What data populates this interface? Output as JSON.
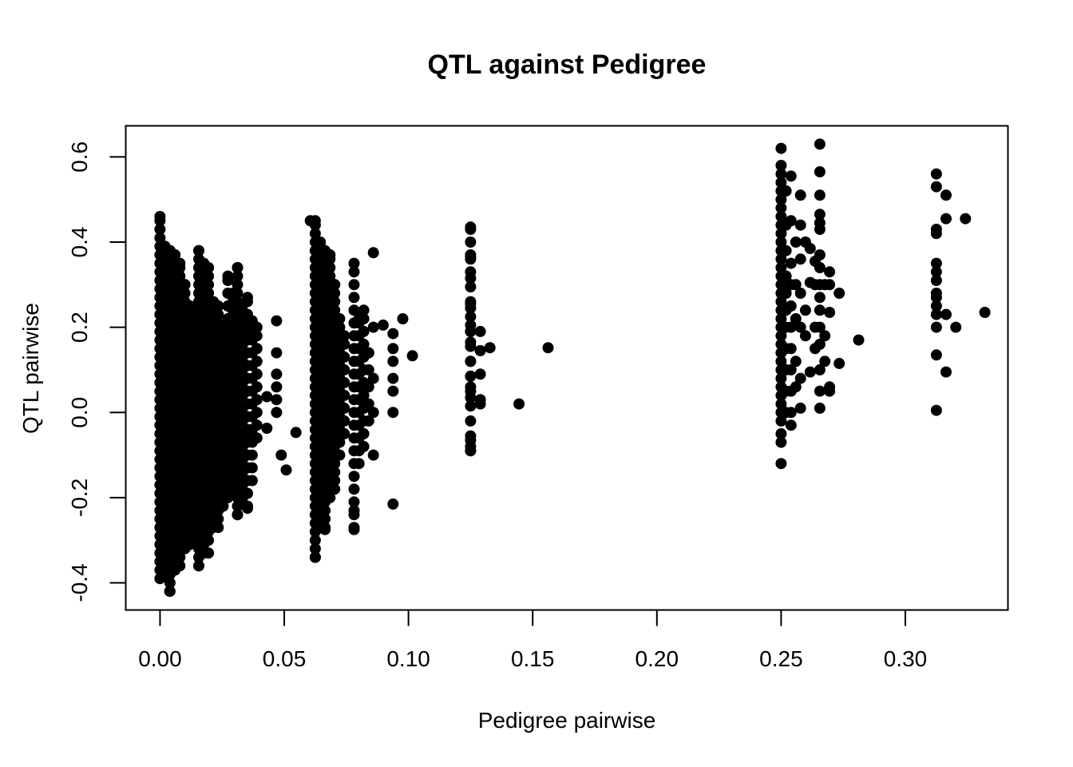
{
  "chart_data": {
    "type": "scatter",
    "title": "QTL against Pedigree",
    "xlabel": "Pedigree pairwise",
    "ylabel": "QTL pairwise",
    "xlim": [
      -0.0138,
      0.3413
    ],
    "ylim": [
      -0.4638,
      0.6729
    ],
    "xticks": [
      {
        "value": 0.0,
        "label": "0.00"
      },
      {
        "value": 0.05,
        "label": "0.05"
      },
      {
        "value": 0.1,
        "label": "0.10"
      },
      {
        "value": 0.15,
        "label": "0.15"
      },
      {
        "value": 0.2,
        "label": "0.20"
      },
      {
        "value": 0.25,
        "label": "0.25"
      },
      {
        "value": 0.3,
        "label": "0.30"
      }
    ],
    "yticks": [
      {
        "value": -0.4,
        "label": "-0.4"
      },
      {
        "value": -0.2,
        "label": "-0.2"
      },
      {
        "value": 0.0,
        "label": "0.0"
      },
      {
        "value": 0.2,
        "label": "0.2"
      },
      {
        "value": 0.4,
        "label": "0.4"
      },
      {
        "value": 0.6,
        "label": "0.6"
      }
    ],
    "grid": false,
    "legend": "none",
    "marker_color": "#000000",
    "series": [
      {
        "clusters": [
          {
            "x": 0.0,
            "y_min": -0.39,
            "y_max": 0.46,
            "step": 0.02
          },
          {
            "x": 0.002,
            "y_min": -0.38,
            "y_max": 0.39,
            "step": 0.02
          },
          {
            "x": 0.004,
            "y_min": -0.42,
            "y_max": 0.38,
            "step": 0.02
          },
          {
            "x": 0.006,
            "y_min": -0.37,
            "y_max": 0.37,
            "step": 0.02
          },
          {
            "x": 0.008,
            "y_min": -0.36,
            "y_max": 0.35,
            "step": 0.02
          },
          {
            "x": 0.01,
            "y_min": -0.32,
            "y_max": 0.3,
            "step": 0.02
          },
          {
            "x": 0.012,
            "y_min": -0.31,
            "y_max": 0.25,
            "step": 0.02
          },
          {
            "x": 0.0156,
            "y_min": -0.36,
            "y_max": 0.38,
            "step": 0.02
          },
          {
            "x": 0.0176,
            "y_min": -0.33,
            "y_max": 0.35,
            "step": 0.02
          },
          {
            "x": 0.0195,
            "y_min": -0.3,
            "y_max": 0.34,
            "step": 0.02
          },
          {
            "x": 0.0215,
            "y_min": -0.27,
            "y_max": 0.26,
            "step": 0.02
          },
          {
            "x": 0.0234,
            "y_min": -0.25,
            "y_max": 0.25,
            "step": 0.02
          },
          {
            "x": 0.0254,
            "y_min": -0.22,
            "y_max": 0.2,
            "step": 0.02
          },
          {
            "x": 0.0273,
            "y_min": -0.2,
            "y_max": 0.32,
            "step": 0.03
          },
          {
            "x": 0.0293,
            "y_min": -0.18,
            "y_max": 0.28,
            "step": 0.03
          },
          {
            "x": 0.0312,
            "y_min": -0.24,
            "y_max": 0.34,
            "step": 0.02
          },
          {
            "x": 0.0332,
            "y_min": -0.2,
            "y_max": 0.24,
            "step": 0.03
          },
          {
            "x": 0.0352,
            "y_min": -0.22,
            "y_max": 0.27,
            "step": 0.03
          },
          {
            "x": 0.0371,
            "y_min": -0.16,
            "y_max": 0.19,
            "step": 0.03
          },
          {
            "x": 0.039,
            "y_min": -0.06,
            "y_max": 0.2,
            "step": 0.03
          },
          {
            "x": 0.0625,
            "y_min": -0.34,
            "y_max": 0.45,
            "step": 0.02
          },
          {
            "x": 0.0645,
            "y_min": -0.27,
            "y_max": 0.4,
            "step": 0.02
          },
          {
            "x": 0.0664,
            "y_min": -0.27,
            "y_max": 0.38,
            "step": 0.02
          },
          {
            "x": 0.0684,
            "y_min": -0.2,
            "y_max": 0.37,
            "step": 0.02
          },
          {
            "x": 0.0703,
            "y_min": -0.18,
            "y_max": 0.3,
            "step": 0.02
          },
          {
            "x": 0.0723,
            "y_min": -0.1,
            "y_max": 0.22,
            "step": 0.03
          },
          {
            "x": 0.0742,
            "y_min": -0.05,
            "y_max": 0.18,
            "step": 0.03
          },
          {
            "x": 0.0781,
            "y_min": -0.27,
            "y_max": 0.35,
            "step": 0.03
          },
          {
            "x": 0.0801,
            "y_min": -0.12,
            "y_max": 0.22,
            "step": 0.03
          },
          {
            "x": 0.082,
            "y_min": -0.08,
            "y_max": 0.24,
            "step": 0.03
          },
          {
            "x": 0.084,
            "y_min": -0.02,
            "y_max": 0.14,
            "step": 0.04
          },
          {
            "x": 0.125,
            "y_min": -0.09,
            "y_max": 0.43,
            "step": 0.035
          }
        ],
        "points": [
          [
            0.0039,
            -0.42
          ],
          [
            0.0488,
            -0.1
          ],
          [
            0.0469,
            0.215
          ],
          [
            0.0508,
            -0.135
          ],
          [
            0.0547,
            -0.047
          ],
          [
            0.043,
            0.037
          ],
          [
            0.043,
            -0.037
          ],
          [
            0.0469,
            0.14
          ],
          [
            0.0469,
            0.09
          ],
          [
            0.0469,
            0.06
          ],
          [
            0.0469,
            0.03
          ],
          [
            0.0469,
            0.0
          ],
          [
            0.0352,
            -0.225
          ],
          [
            0.0352,
            -0.06
          ],
          [
            0.0371,
            0.215
          ],
          [
            0.0195,
            -0.33
          ],
          [
            0.0156,
            -0.36
          ],
          [
            0.0234,
            -0.27
          ],
          [
            0.0312,
            -0.24
          ],
          [
            0.0605,
            0.45
          ],
          [
            0.0625,
            -0.34
          ],
          [
            0.0664,
            -0.275
          ],
          [
            0.0781,
            -0.275
          ],
          [
            0.0781,
            -0.23
          ],
          [
            0.0859,
            0.375
          ],
          [
            0.0859,
            0.2
          ],
          [
            0.0859,
            0.08
          ],
          [
            0.0859,
            0.0
          ],
          [
            0.0859,
            -0.1
          ],
          [
            0.0898,
            0.205
          ],
          [
            0.0938,
            0.185
          ],
          [
            0.0938,
            0.15
          ],
          [
            0.0938,
            0.12
          ],
          [
            0.0938,
            0.08
          ],
          [
            0.0938,
            0.05
          ],
          [
            0.0938,
            0.0
          ],
          [
            0.0938,
            -0.215
          ],
          [
            0.0977,
            0.22
          ],
          [
            0.1016,
            0.133
          ],
          [
            0.125,
            0.435
          ],
          [
            0.125,
            0.37
          ],
          [
            0.125,
            0.36
          ],
          [
            0.125,
            0.315
          ],
          [
            0.125,
            0.255
          ],
          [
            0.125,
            0.245
          ],
          [
            0.125,
            0.205
          ],
          [
            0.125,
            0.19
          ],
          [
            0.125,
            0.165
          ],
          [
            0.125,
            0.12
          ],
          [
            0.125,
            0.085
          ],
          [
            0.125,
            0.06
          ],
          [
            0.125,
            0.035
          ],
          [
            0.125,
            -0.09
          ],
          [
            0.125,
            -0.08
          ],
          [
            0.125,
            -0.065
          ],
          [
            0.1289,
            0.19
          ],
          [
            0.1289,
            0.145
          ],
          [
            0.1289,
            0.09
          ],
          [
            0.1289,
            0.03
          ],
          [
            0.1289,
            0.02
          ],
          [
            0.1328,
            0.152
          ],
          [
            0.1445,
            0.02
          ],
          [
            0.1562,
            0.152
          ],
          [
            0.25,
            0.62
          ],
          [
            0.25,
            0.58
          ],
          [
            0.25,
            0.56
          ],
          [
            0.25,
            0.54
          ],
          [
            0.25,
            0.52
          ],
          [
            0.25,
            0.5
          ],
          [
            0.25,
            0.48
          ],
          [
            0.25,
            0.46
          ],
          [
            0.25,
            0.44
          ],
          [
            0.25,
            0.42
          ],
          [
            0.25,
            0.4
          ],
          [
            0.25,
            0.38
          ],
          [
            0.25,
            0.36
          ],
          [
            0.25,
            0.34
          ],
          [
            0.25,
            0.32
          ],
          [
            0.25,
            0.3
          ],
          [
            0.25,
            0.28
          ],
          [
            0.25,
            0.26
          ],
          [
            0.25,
            0.24
          ],
          [
            0.25,
            0.22
          ],
          [
            0.25,
            0.2
          ],
          [
            0.25,
            0.18
          ],
          [
            0.25,
            0.16
          ],
          [
            0.25,
            0.14
          ],
          [
            0.25,
            0.12
          ],
          [
            0.25,
            0.1
          ],
          [
            0.25,
            0.08
          ],
          [
            0.25,
            0.06
          ],
          [
            0.25,
            0.04
          ],
          [
            0.25,
            0.02
          ],
          [
            0.25,
            0.0
          ],
          [
            0.25,
            -0.02
          ],
          [
            0.25,
            -0.05
          ],
          [
            0.25,
            -0.07
          ],
          [
            0.25,
            -0.12
          ],
          [
            0.252,
            0.52
          ],
          [
            0.252,
            0.44
          ],
          [
            0.252,
            0.38
          ],
          [
            0.252,
            0.32
          ],
          [
            0.252,
            0.28
          ],
          [
            0.252,
            0.24
          ],
          [
            0.252,
            0.2
          ],
          [
            0.252,
            0.15
          ],
          [
            0.252,
            0.1
          ],
          [
            0.252,
            0.05
          ],
          [
            0.252,
            0.0
          ],
          [
            0.254,
            0.555
          ],
          [
            0.254,
            0.45
          ],
          [
            0.254,
            0.35
          ],
          [
            0.254,
            0.3
          ],
          [
            0.254,
            0.25
          ],
          [
            0.254,
            0.2
          ],
          [
            0.254,
            0.15
          ],
          [
            0.254,
            0.1
          ],
          [
            0.254,
            0.05
          ],
          [
            0.254,
            0.0
          ],
          [
            0.254,
            -0.03
          ],
          [
            0.2559,
            0.4
          ],
          [
            0.2559,
            0.3
          ],
          [
            0.2559,
            0.22
          ],
          [
            0.2559,
            0.12
          ],
          [
            0.2559,
            0.06
          ],
          [
            0.2578,
            0.51
          ],
          [
            0.2578,
            0.44
          ],
          [
            0.2578,
            0.36
          ],
          [
            0.2578,
            0.28
          ],
          [
            0.2578,
            0.2
          ],
          [
            0.2578,
            0.08
          ],
          [
            0.2578,
            0.01
          ],
          [
            0.2598,
            0.4
          ],
          [
            0.2598,
            0.24
          ],
          [
            0.2598,
            0.18
          ],
          [
            0.2617,
            0.385
          ],
          [
            0.2617,
            0.305
          ],
          [
            0.2617,
            0.095
          ],
          [
            0.2637,
            0.355
          ],
          [
            0.2637,
            0.3
          ],
          [
            0.2637,
            0.2
          ],
          [
            0.2637,
            0.15
          ],
          [
            0.2656,
            0.63
          ],
          [
            0.2656,
            0.565
          ],
          [
            0.2656,
            0.51
          ],
          [
            0.2656,
            0.465
          ],
          [
            0.2656,
            0.445
          ],
          [
            0.2656,
            0.43
          ],
          [
            0.2656,
            0.37
          ],
          [
            0.2656,
            0.34
          ],
          [
            0.2656,
            0.3
          ],
          [
            0.2656,
            0.27
          ],
          [
            0.2656,
            0.24
          ],
          [
            0.2656,
            0.2
          ],
          [
            0.2656,
            0.16
          ],
          [
            0.2656,
            0.1
          ],
          [
            0.2656,
            0.05
          ],
          [
            0.2656,
            0.01
          ],
          [
            0.2676,
            0.3
          ],
          [
            0.2676,
            0.18
          ],
          [
            0.2676,
            0.12
          ],
          [
            0.2695,
            0.33
          ],
          [
            0.2695,
            0.3
          ],
          [
            0.2695,
            0.235
          ],
          [
            0.2695,
            0.06
          ],
          [
            0.2695,
            0.05
          ],
          [
            0.2734,
            0.28
          ],
          [
            0.2734,
            0.115
          ],
          [
            0.2812,
            0.17
          ],
          [
            0.3125,
            0.56
          ],
          [
            0.3125,
            0.53
          ],
          [
            0.3125,
            0.43
          ],
          [
            0.3125,
            0.42
          ],
          [
            0.3125,
            0.35
          ],
          [
            0.3125,
            0.33
          ],
          [
            0.3125,
            0.31
          ],
          [
            0.3125,
            0.28
          ],
          [
            0.3125,
            0.27
          ],
          [
            0.3125,
            0.25
          ],
          [
            0.3125,
            0.23
          ],
          [
            0.3125,
            0.2
          ],
          [
            0.3125,
            0.135
          ],
          [
            0.3125,
            0.005
          ],
          [
            0.3164,
            0.51
          ],
          [
            0.3164,
            0.455
          ],
          [
            0.3164,
            0.23
          ],
          [
            0.3164,
            0.095
          ],
          [
            0.3203,
            0.2
          ],
          [
            0.3242,
            0.455
          ],
          [
            0.332,
            0.235
          ]
        ]
      }
    ]
  }
}
